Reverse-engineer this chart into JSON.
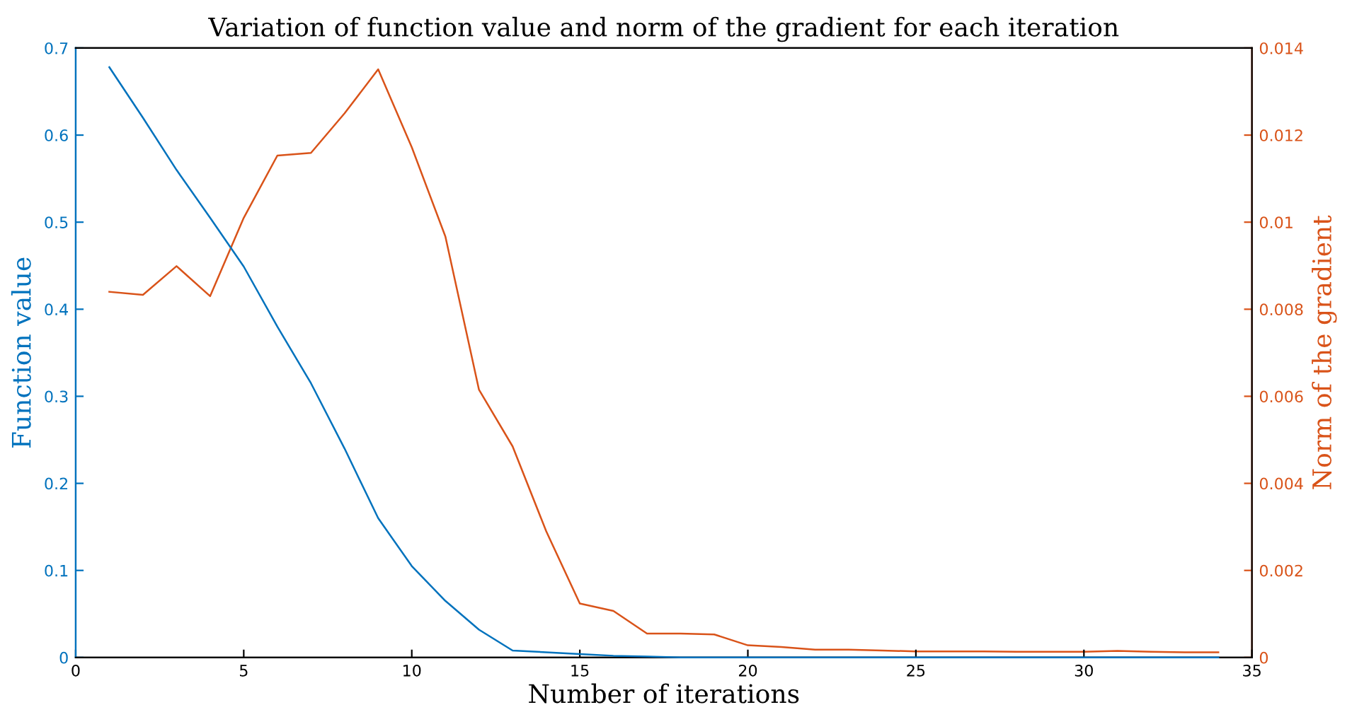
{
  "chart_data": {
    "type": "line",
    "title": "Variation of function value and norm of the gradient for each iteration",
    "xlabel": "Number of iterations",
    "ylabel": "Function value",
    "y2label": "Norm of the gradient",
    "xlim": [
      0,
      35
    ],
    "xticks": [
      0,
      5,
      10,
      15,
      20,
      25,
      30,
      35
    ],
    "ylim": [
      0,
      0.7
    ],
    "yticks": [
      0,
      0.1,
      0.2,
      0.3,
      0.4,
      0.5,
      0.6,
      0.7
    ],
    "y2lim": [
      0,
      0.014
    ],
    "y2ticks": [
      0,
      0.002,
      0.004,
      0.006,
      0.008,
      0.01,
      0.012,
      0.014
    ],
    "grid": false,
    "x": [
      1,
      2,
      3,
      4,
      5,
      6,
      7,
      8,
      9,
      10,
      11,
      12,
      13,
      14,
      15,
      16,
      17,
      18,
      19,
      20,
      21,
      22,
      23,
      24,
      25,
      26,
      27,
      28,
      29,
      30,
      31,
      32,
      33,
      34
    ],
    "series": [
      {
        "color": "#0072bd",
        "values": [
          0.678,
          0.62,
          0.56,
          0.505,
          0.449,
          0.38,
          0.315,
          0.24,
          0.16,
          0.105,
          0.065,
          0.032,
          0.008,
          0.006,
          0.004,
          0.002,
          0.001,
          0,
          0,
          0,
          0,
          0,
          0,
          0,
          0,
          0,
          0,
          0,
          0,
          0,
          0,
          0,
          0,
          0
        ]
      },
      {
        "color": "#d95319",
        "axis": "y2",
        "values": [
          0.0084,
          0.00833,
          0.00899,
          0.0083,
          0.0101,
          0.01153,
          0.01159,
          0.0125,
          0.01351,
          0.01172,
          0.00967,
          0.00615,
          0.00485,
          0.0029,
          0.00124,
          0.00107,
          0.00055,
          0.00055,
          0.00053,
          0.00028,
          0.00024,
          0.00018,
          0.00018,
          0.00016,
          0.00014,
          0.00014,
          0.00014,
          0.00013,
          0.00013,
          0.00013,
          0.00015,
          0.00013,
          0.00012,
          0.00012
        ]
      }
    ]
  }
}
